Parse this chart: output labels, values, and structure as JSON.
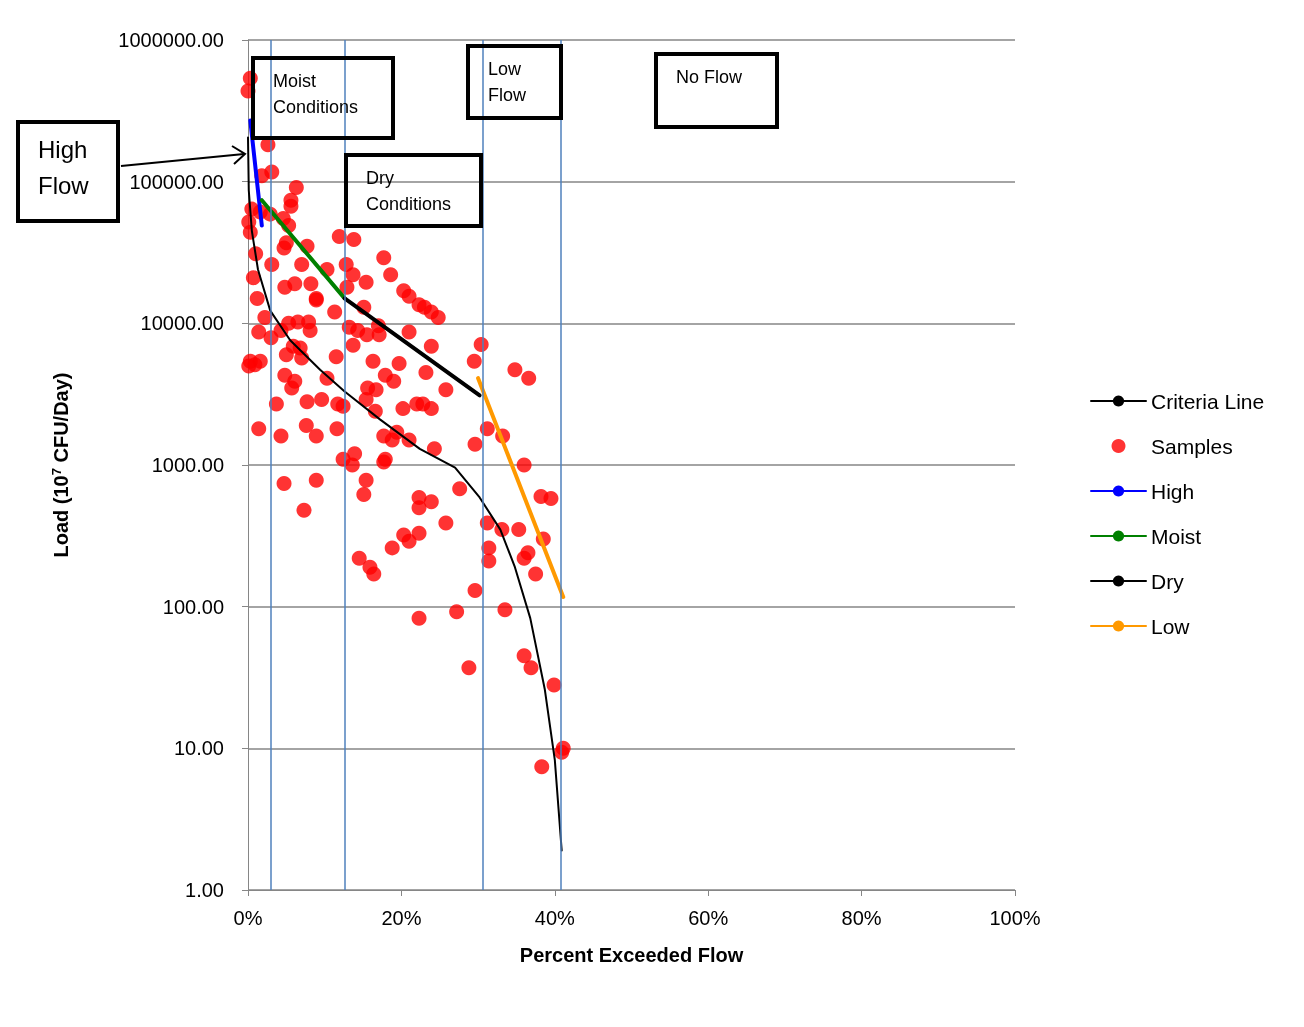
{
  "chart_data": {
    "type": "scatter",
    "xlabel": "Percent Exceeded Flow",
    "ylabel": "Load (10$^{7}$ CFU/Day)",
    "log": "y",
    "xlim": [
      0,
      100
    ],
    "xticks": [
      {
        "value": 0,
        "label": "0%"
      },
      {
        "value": 20,
        "label": "20%"
      },
      {
        "value": 40,
        "label": "40%"
      },
      {
        "value": 60,
        "label": "60%"
      },
      {
        "value": 80,
        "label": "80%"
      },
      {
        "value": 100,
        "label": "100%"
      }
    ],
    "ylim": [
      1,
      1000000
    ],
    "yticks": [
      {
        "value": 1,
        "label": "1.00"
      },
      {
        "value": 10,
        "label": "10.00"
      },
      {
        "value": 100,
        "label": "100.00"
      },
      {
        "value": 1000,
        "label": "1000.00"
      },
      {
        "value": 10000,
        "label": "10000.00"
      },
      {
        "value": 100000,
        "label": "100000.00"
      },
      {
        "value": 1000000,
        "label": "1000000.00"
      }
    ],
    "grid": "y",
    "legend": "right",
    "series": [
      {
        "name": "Criteria Line",
        "type": "line",
        "color": "#000000",
        "marker": "none",
        "x": [
          0,
          0.1,
          0.5,
          1.3,
          2.9,
          5.5,
          9.4,
          12.6,
          17.2,
          22.4,
          27.0,
          30.2,
          32.9,
          34.8,
          36.8,
          38.7,
          40.0,
          40.9
        ],
        "values": [
          205000,
          87000,
          45000,
          24000,
          12300,
          7600,
          4700,
          3300,
          2100,
          1300,
          960,
          590,
          350,
          190,
          83,
          26,
          8.3,
          1.9
        ]
      },
      {
        "name": "Samples",
        "color": "#ff0000",
        "marker": "circle",
        "x": [
          0.3,
          0,
          2.6,
          3.1,
          1.8,
          6.3,
          5.6,
          5.6,
          2.9,
          1.6,
          0.1,
          4.6,
          5.3,
          0.3,
          7.7,
          5.0,
          4.7,
          1.0,
          3.1,
          7.0,
          0.7,
          4.8,
          6.1,
          8.2,
          8.9,
          8.9,
          1.2,
          10.3,
          2.2,
          11.3,
          11.9,
          13.8,
          12.8,
          13.7,
          12.9,
          15.4,
          17.7,
          18.6,
          20.3,
          21.0,
          22.3,
          23.0,
          23.9,
          24.8,
          15.1,
          5.3,
          6.5,
          7.9,
          1.4,
          3.0,
          4.3,
          8.1,
          13.2,
          14.3,
          15.5,
          17.0,
          17.1,
          21.0,
          13.7,
          23.9,
          30.4,
          5.9,
          6.8,
          0.3,
          0.9,
          1.6,
          5.0,
          7.0,
          11.5,
          16.3,
          19.7,
          29.5,
          34.8,
          36.6,
          4.8,
          6.1,
          5.7,
          10.3,
          17.9,
          19.0,
          23.2,
          15.6,
          16.7,
          25.8,
          3.7,
          7.7,
          9.6,
          15.4,
          11.7,
          12.4,
          16.6,
          20.2,
          22.0,
          22.8,
          23.9,
          7.6,
          1.4,
          4.3,
          8.9,
          11.6,
          17.7,
          18.8,
          19.4,
          21.0,
          29.6,
          31.2,
          33.2,
          24.3,
          13.9,
          12.4,
          13.6,
          17.9,
          17.7,
          36.0,
          15.4,
          8.9,
          4.7,
          15.1,
          27.6,
          38.2,
          39.5,
          22.3,
          23.9,
          22.3,
          7.3,
          25.8,
          31.2,
          33.1,
          35.3,
          38.5,
          20.3,
          21.0,
          22.3,
          18.8,
          31.4,
          31.4,
          36.5,
          36.0,
          14.5,
          15.9,
          16.4,
          37.5,
          29.6,
          33.5,
          27.2,
          22.3,
          36.0,
          36.9,
          28.8,
          39.9,
          41.1,
          40.9,
          38.3,
          0.5,
          0.1
        ],
        "values": [
          537000,
          436000,
          182000,
          117000,
          110000,
          91000,
          74000,
          67000,
          59000,
          61000,
          52000,
          55000,
          49000,
          44000,
          35000,
          37000,
          34000,
          31000,
          26000,
          26000,
          21000,
          18000,
          19000,
          19000,
          15000,
          14600,
          15000,
          24000,
          11000,
          12000,
          41000,
          39000,
          26000,
          22000,
          18000,
          19500,
          29000,
          22000,
          17000,
          15500,
          13500,
          13000,
          12000,
          11000,
          13000,
          10000,
          10200,
          10200,
          8700,
          7900,
          8900,
          8900,
          9400,
          8900,
          8300,
          9600,
          8300,
          8700,
          7000,
          6900,
          7100,
          6900,
          6700,
          5400,
          5100,
          5400,
          6000,
          5700,
          5800,
          5400,
          5200,
          5400,
          4700,
          4100,
          4300,
          3900,
          3500,
          4100,
          4300,
          3900,
          4500,
          3500,
          3400,
          3400,
          2700,
          2800,
          2900,
          2900,
          2700,
          2600,
          2400,
          2500,
          2700,
          2700,
          2500,
          1900,
          1800,
          1600,
          1600,
          1800,
          1600,
          1500,
          1700,
          1500,
          1400,
          1800,
          1600,
          1300,
          1200,
          1100,
          1000,
          1100,
          1050,
          1000,
          780,
          780,
          740,
          620,
          680,
          600,
          580,
          590,
          550,
          500,
          480,
          390,
          390,
          350,
          350,
          300,
          320,
          290,
          330,
          260,
          260,
          210,
          240,
          220,
          220,
          190,
          170,
          170,
          130,
          95,
          92,
          83,
          45,
          37,
          37,
          28,
          10,
          9.4,
          7.4,
          64000,
          5000
        ]
      },
      {
        "name": "High",
        "type": "line",
        "color": "#0000ff",
        "marker": "none",
        "x": [
          0.3,
          1.8
        ],
        "values": [
          270000,
          49000
        ]
      },
      {
        "name": "Moist",
        "type": "line",
        "color": "#008000",
        "marker": "none",
        "x": [
          1.8,
          12.6
        ],
        "values": [
          74000,
          15000
        ]
      },
      {
        "name": "Dry",
        "type": "line",
        "color": "#000000",
        "marker": "none",
        "x": [
          12.6,
          30.2
        ],
        "values": [
          15000,
          3100
        ]
      },
      {
        "name": "Low",
        "type": "line",
        "color": "#ff9900",
        "marker": "none",
        "x": [
          30.0,
          41.1
        ],
        "values": [
          4100,
          117
        ]
      }
    ],
    "ref_lines": [
      {
        "axis": "x",
        "value": 3.0,
        "color": "#4f81bd"
      },
      {
        "axis": "x",
        "value": 12.6,
        "color": "#4f81bd"
      },
      {
        "axis": "x",
        "value": 30.6,
        "color": "#4f81bd"
      },
      {
        "axis": "x",
        "value": 40.8,
        "color": "#4f81bd"
      }
    ],
    "annotations": [
      "High Flow",
      "Moist Conditions",
      "Dry Conditions",
      "Low Flow",
      "No Flow"
    ]
  }
}
